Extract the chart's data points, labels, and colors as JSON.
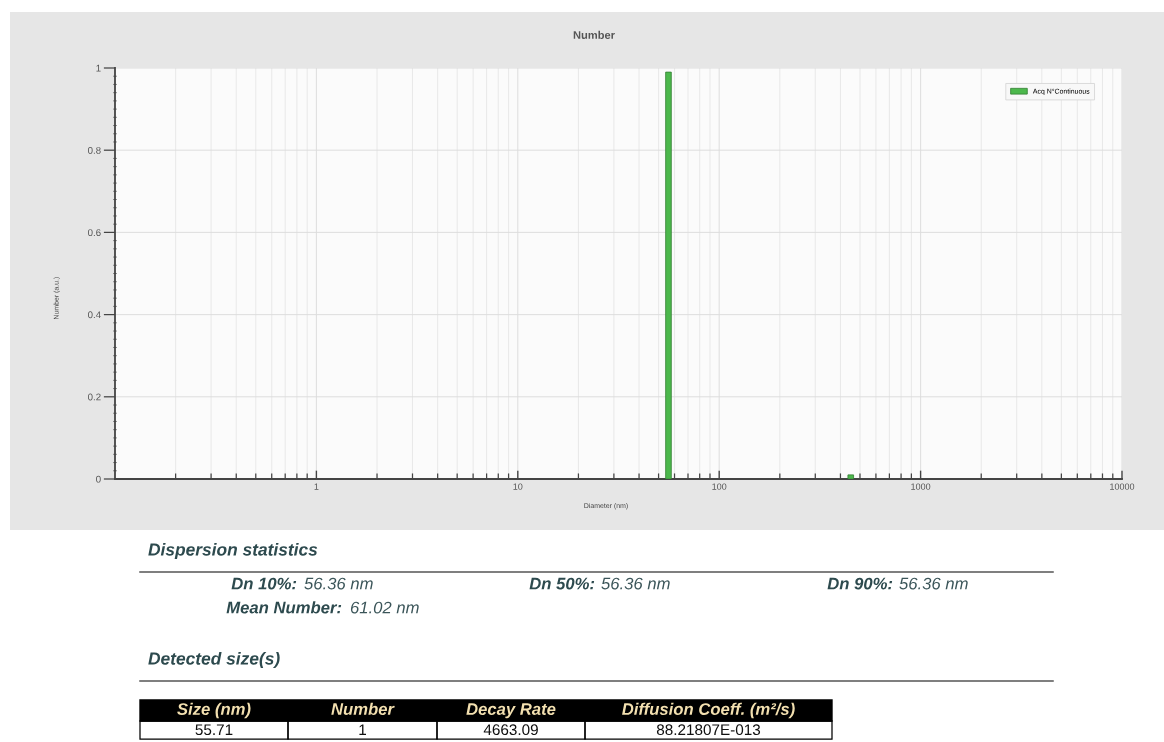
{
  "chart_data": {
    "type": "bar",
    "title": "Number",
    "xlabel": "Diameter (nm)",
    "ylabel": "Number (a.u.)",
    "x": [
      56,
      450
    ],
    "series": [
      {
        "name": "Acq N°Continuous",
        "color": "#4cb84c",
        "values": [
          0.99,
          0.01
        ]
      }
    ],
    "log": "x",
    "xlim": [
      0.1,
      10000
    ],
    "xticks": [
      1,
      10,
      100,
      1000,
      10000
    ],
    "ylim": [
      0,
      1
    ],
    "yticks": [
      0,
      0.2,
      0.4,
      0.6,
      0.8,
      1
    ],
    "grid": true,
    "legend": "top right",
    "annotations": [
      "Dispersion statistics",
      "Dn 10%:",
      "56.36 nm",
      "Dn 50%:",
      "56.36 nm",
      "Dn 90%:",
      "56.36 nm",
      "Mean Number:",
      "61.02 nm",
      "Detected size(s)",
      "Size (nm)",
      "Number",
      "Decay Rate",
      "Diffusion Coeff. (m²/s)",
      "55.71",
      "1",
      "4663.09",
      "88.21807E-013"
    ]
  }
}
